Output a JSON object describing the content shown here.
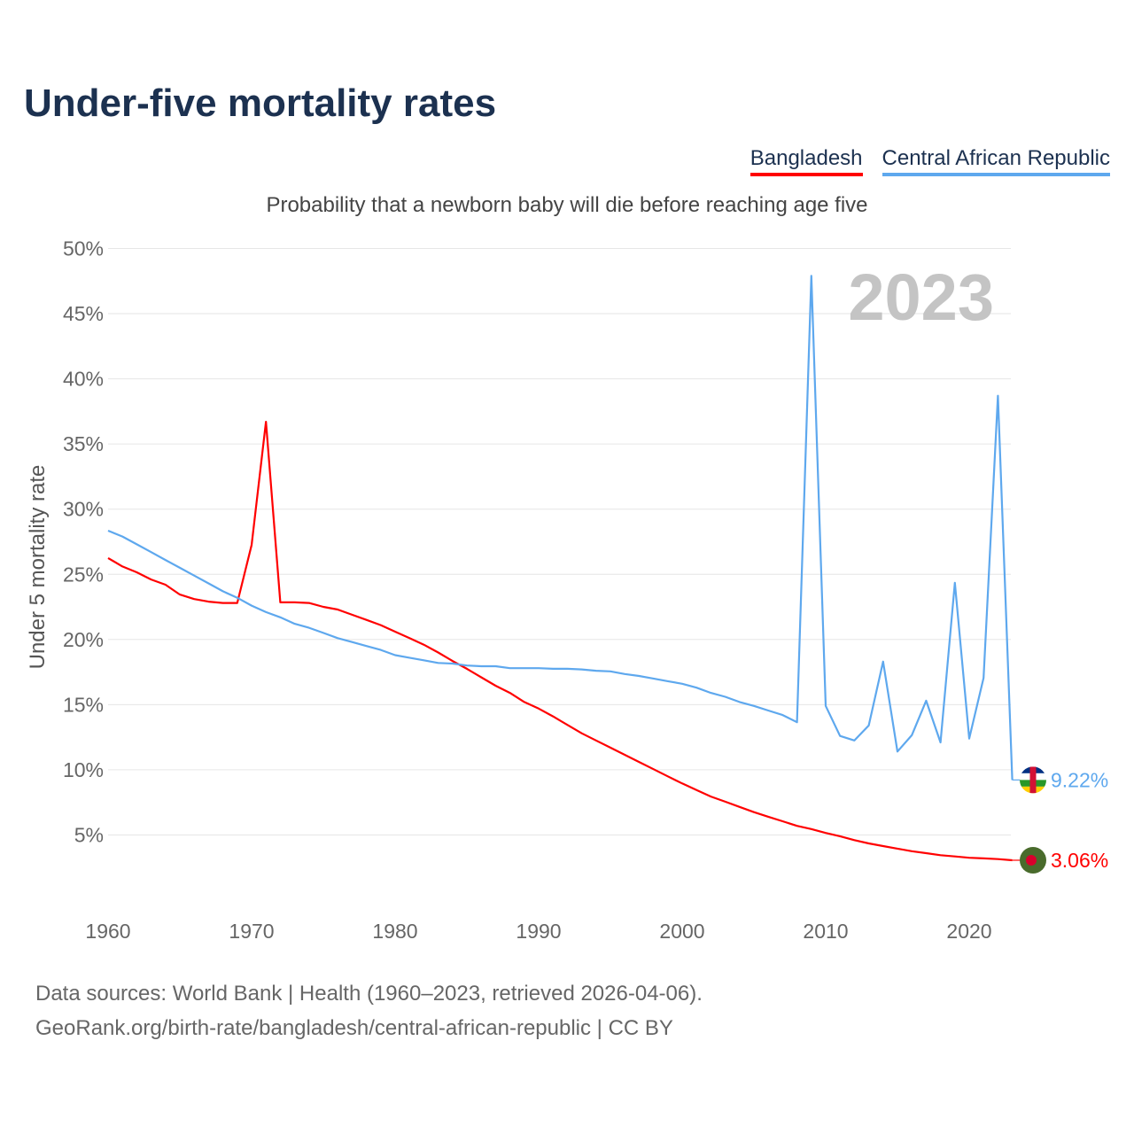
{
  "title": "Under-five mortality rates",
  "subtitle": "Probability that a newborn baby will die before reaching age five",
  "legend": [
    "Bangladesh",
    "Central African Republic"
  ],
  "year_label": "2023",
  "footer": {
    "line1": "Data sources: World Bank | Health (1960–2023, retrieved 2026-04-06).",
    "line2": "GeoRank.org/birth-rate/bangladesh/central-african-republic | CC BY"
  },
  "chart_data": {
    "type": "line",
    "title": "Under-five mortality rates",
    "xlabel": "",
    "ylabel": "Under 5 mortality rate",
    "xlim": [
      1960,
      2023
    ],
    "ylim": [
      0,
      50
    ],
    "xticks": [
      "1960",
      "1970",
      "1980",
      "1990",
      "2000",
      "2010",
      "2020"
    ],
    "yticks": [
      "5%",
      "10%",
      "15%",
      "20%",
      "25%",
      "30%",
      "35%",
      "40%",
      "45%",
      "50%"
    ],
    "grid": true,
    "legend_position": "top-right",
    "x_start": 1960,
    "series": [
      {
        "name": "Bangladesh",
        "color": "#ff0000",
        "end_label": "3.06%",
        "flag_colors": [
          "#496b2c",
          "#d8002c"
        ],
        "values": [
          26.25,
          25.6,
          25.15,
          24.6,
          24.2,
          23.45,
          23.1,
          22.9,
          22.8,
          22.8,
          27.25,
          36.7,
          22.85,
          22.85,
          22.8,
          22.5,
          22.3,
          21.9,
          21.5,
          21.1,
          20.6,
          20.1,
          19.6,
          19.0,
          18.35,
          17.75,
          17.1,
          16.45,
          15.9,
          15.2,
          14.7,
          14.1,
          13.45,
          12.8,
          12.25,
          11.7,
          11.15,
          10.6,
          10.05,
          9.5,
          8.95,
          8.45,
          7.95,
          7.55,
          7.15,
          6.75,
          6.4,
          6.05,
          5.7,
          5.45,
          5.15,
          4.9,
          4.6,
          4.35,
          4.15,
          3.95,
          3.75,
          3.6,
          3.45,
          3.35,
          3.25,
          3.2,
          3.15,
          3.06
        ]
      },
      {
        "name": "Central African Republic",
        "color": "#5ea8ee",
        "end_label": "9.22%",
        "flag_colors": [
          "#003082",
          "#ffffff",
          "#289728",
          "#ffce00",
          "#d21034"
        ],
        "values": [
          28.35,
          27.9,
          27.3,
          26.7,
          26.1,
          25.5,
          24.9,
          24.3,
          23.7,
          23.2,
          22.6,
          22.1,
          21.7,
          21.2,
          20.9,
          20.5,
          20.1,
          19.8,
          19.5,
          19.2,
          18.8,
          18.6,
          18.4,
          18.2,
          18.15,
          18.0,
          17.95,
          17.95,
          17.8,
          17.8,
          17.8,
          17.75,
          17.75,
          17.7,
          17.6,
          17.55,
          17.35,
          17.2,
          17.0,
          16.8,
          16.6,
          16.3,
          15.9,
          15.6,
          15.2,
          14.9,
          14.55,
          14.2,
          13.65,
          47.9,
          14.9,
          12.6,
          12.25,
          13.4,
          18.3,
          11.4,
          12.65,
          15.3,
          12.1,
          24.35,
          12.4,
          17.05,
          38.7,
          9.22
        ]
      }
    ]
  }
}
